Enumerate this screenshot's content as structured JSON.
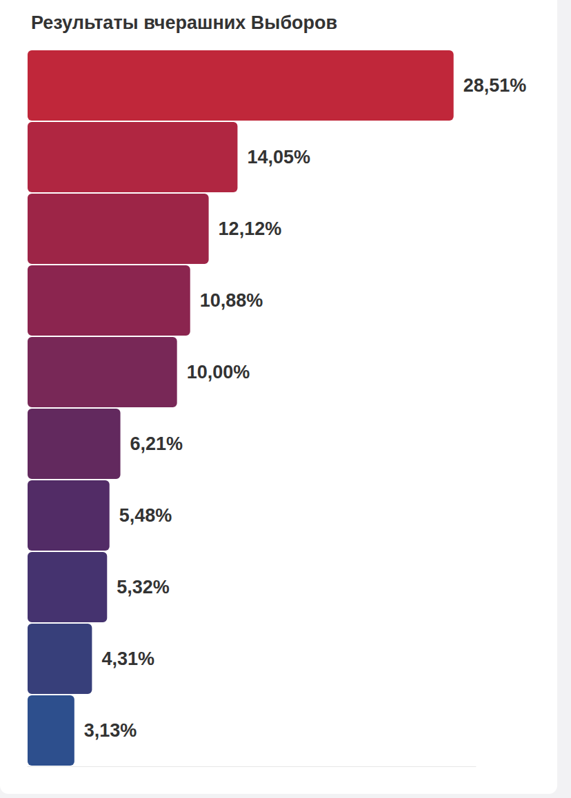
{
  "chart_data": {
    "type": "bar",
    "title": "Результаты вчерашних Выборов",
    "orientation": "horizontal",
    "categories": [
      null,
      null,
      null,
      null,
      null,
      null,
      null,
      null,
      null,
      null
    ],
    "values": [
      28.51,
      14.05,
      12.12,
      10.88,
      10.0,
      6.21,
      5.48,
      5.32,
      4.31,
      3.13
    ],
    "value_labels": [
      "28,51%",
      "14,05%",
      "12,12%",
      "10,88%",
      "10,00%",
      "6,21%",
      "5,48%",
      "5,32%",
      "4,31%",
      "3,13%"
    ],
    "colors": [
      "#c0273a",
      "#b02641",
      "#9d2547",
      "#8b254f",
      "#782857",
      "#62295e",
      "#522c66",
      "#45336f",
      "#373f7a",
      "#2d4f8d"
    ],
    "xlim": [
      0,
      30
    ],
    "xticks": [
      0,
      30
    ],
    "grid": false,
    "data_labels": true,
    "tick_labels": false
  }
}
